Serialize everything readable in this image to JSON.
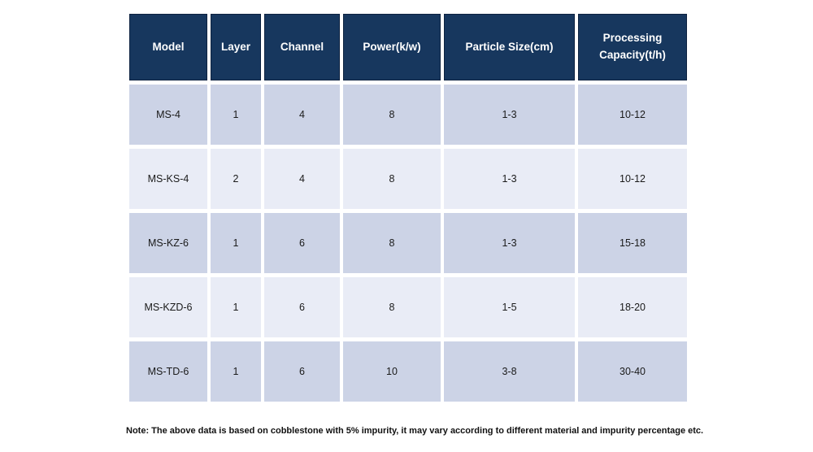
{
  "colors": {
    "header_bg": "#17375e",
    "header_border": "#0d2240",
    "header_text": "#ffffff",
    "row_dark": "#ccd3e6",
    "row_light": "#e9ecf6",
    "cell_text": "#1a1a1a"
  },
  "table": {
    "columns": [
      "Model",
      "Layer",
      "Channel",
      "Power(k/w)",
      "Particle Size(cm)",
      "Processing Capacity(t/h)"
    ],
    "rows": [
      [
        "MS-4",
        "1",
        "4",
        "8",
        "1-3",
        "10-12"
      ],
      [
        "MS-KS-4",
        "2",
        "4",
        "8",
        "1-3",
        "10-12"
      ],
      [
        "MS-KZ-6",
        "1",
        "6",
        "8",
        "1-3",
        "15-18"
      ],
      [
        "MS-KZD-6",
        "1",
        "6",
        "8",
        "1-5",
        "18-20"
      ],
      [
        "MS-TD-6",
        "1",
        "6",
        "10",
        "3-8",
        "30-40"
      ]
    ]
  },
  "note": "Note: The above data is based on cobblestone with 5% impurity, it may vary according to different material and impurity percentage etc."
}
